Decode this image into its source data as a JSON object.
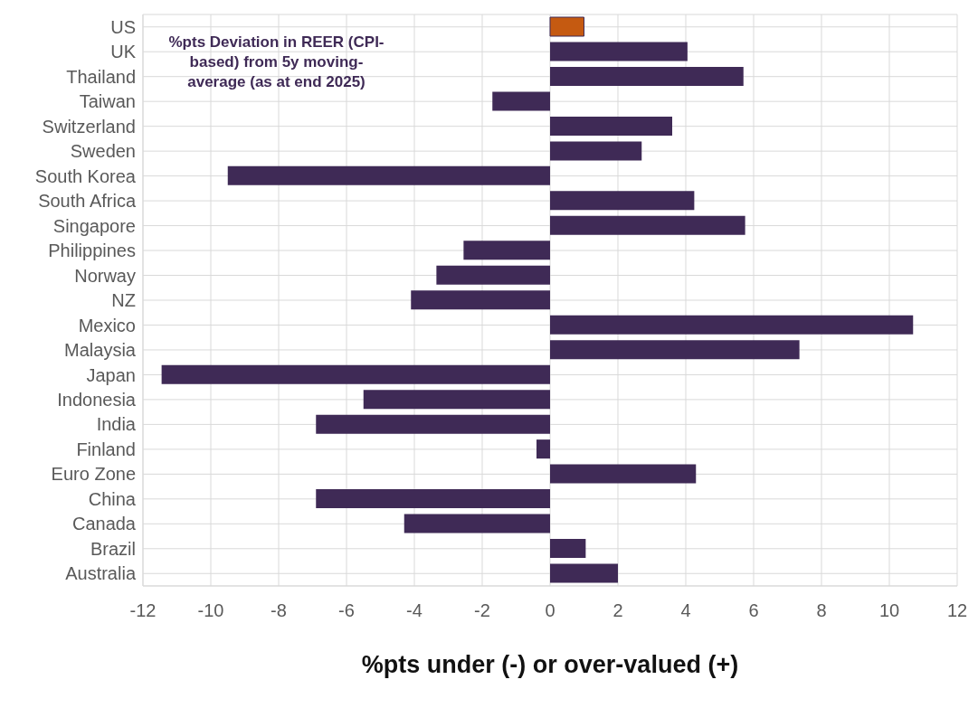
{
  "chart_data": {
    "type": "bar",
    "orientation": "horizontal",
    "title": "%pts Deviation in REER (CPI-based) from 5y moving-average (as at end 2025)",
    "xlabel": "%pts under (-) or over-valued (+)",
    "categories": [
      "US",
      "UK",
      "Thailand",
      "Taiwan",
      "Switzerland",
      "Sweden",
      "South Korea",
      "South Africa",
      "Singapore",
      "Philippines",
      "Norway",
      "NZ",
      "Mexico",
      "Malaysia",
      "Japan",
      "Indonesia",
      "India",
      "Finland",
      "Euro Zone",
      "China",
      "Canada",
      "Brazil",
      "Australia"
    ],
    "values": [
      1.0,
      4.05,
      5.7,
      -1.7,
      3.6,
      2.7,
      -9.5,
      4.25,
      5.75,
      -2.55,
      -3.35,
      -4.1,
      10.7,
      7.35,
      -11.45,
      -5.5,
      -6.9,
      -0.4,
      4.3,
      -6.9,
      -4.3,
      1.05,
      2.0
    ],
    "colors": [
      "#c55a11",
      "#3f2a56",
      "#3f2a56",
      "#3f2a56",
      "#3f2a56",
      "#3f2a56",
      "#3f2a56",
      "#3f2a56",
      "#3f2a56",
      "#3f2a56",
      "#3f2a56",
      "#3f2a56",
      "#3f2a56",
      "#3f2a56",
      "#3f2a56",
      "#3f2a56",
      "#3f2a56",
      "#3f2a56",
      "#3f2a56",
      "#3f2a56",
      "#3f2a56",
      "#3f2a56",
      "#3f2a56"
    ],
    "xlim": [
      -12,
      12
    ],
    "xticks": [
      -12,
      -10,
      -8,
      -6,
      -4,
      -2,
      0,
      2,
      4,
      6,
      8,
      10,
      12
    ],
    "grid": true,
    "legend": false
  }
}
